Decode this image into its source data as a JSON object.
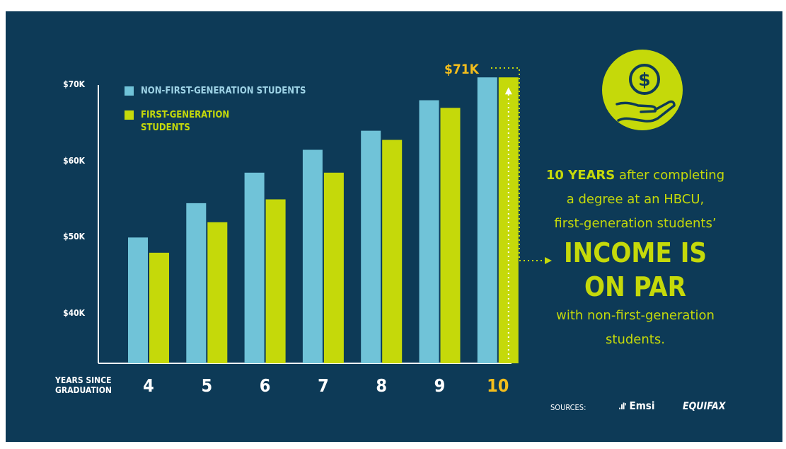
{
  "colors": {
    "background": "#0d3a57",
    "non_first_gen": "#70c3d8",
    "first_gen": "#c5d90a",
    "highlight": "#f3bd1c",
    "text": "#ffffff"
  },
  "chart_data": {
    "type": "bar",
    "categories": [
      "4",
      "5",
      "6",
      "7",
      "8",
      "9",
      "10"
    ],
    "series": [
      {
        "name": "NON-FIRST-GENERATION STUDENTS",
        "values": [
          50,
          54.5,
          58.5,
          61.5,
          64,
          68,
          71
        ]
      },
      {
        "name": "FIRST-GENERATION STUDENTS",
        "values": [
          48,
          52,
          55,
          58.5,
          62.8,
          67,
          71
        ]
      }
    ],
    "xlabel": "YEARS SINCE GRADUATION",
    "ylabel": "",
    "ylim": [
      34.3,
      72
    ],
    "yticks": [
      40,
      50,
      60,
      70
    ],
    "ytick_labels": [
      "$40K",
      "$50K",
      "$60K",
      "$70K"
    ],
    "grid": false,
    "legend_position": "top-left",
    "highlight_category": "10",
    "annotation": "$71K"
  },
  "icon": {
    "name": "money-in-hand-icon"
  },
  "message": {
    "line1_bold": "10 YEARS",
    "line1_rest": " after completing",
    "line2": "a degree at an HBCU,",
    "line3": "first-generation students’",
    "big1": "INCOME IS",
    "big2": "ON PAR",
    "line4": "with non-first-generation",
    "line5": "students."
  },
  "sources": {
    "label": "SOURCES:",
    "emsi": "Emsi",
    "equifax": "EQUIFAX"
  }
}
